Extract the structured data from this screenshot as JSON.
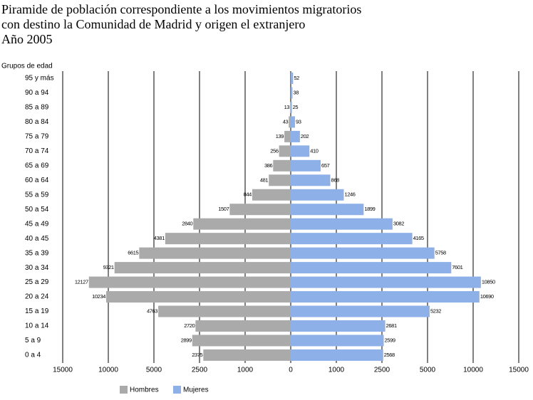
{
  "chart_data": {
    "type": "pyramid",
    "title": [
      "Piramide de población correspondiente a los movimientos migratorios",
      "con destino la Comunidad de Madrid y origen el extranjero",
      "Año 2005"
    ],
    "y_label": "Grupos de edad",
    "categories": [
      "95 y más",
      "90 a 94",
      "85 a 89",
      "80 a 84",
      "75 a 79",
      "70 a 74",
      "65 a 69",
      "60 a 64",
      "55 a 59",
      "50 a 54",
      "45 a 49",
      "40 a 45",
      "35 a 39",
      "30 a 34",
      "25 a 29",
      "20 a 24",
      "15 a 19",
      "10 a 14",
      "5 a 9",
      "0 a 4"
    ],
    "series": [
      {
        "name": "Hombres",
        "color": "#aaaaaa",
        "side": "left",
        "values": [
          null,
          null,
          13,
          43,
          139,
          256,
          386,
          481,
          844,
          1507,
          2840,
          4381,
          6615,
          9321,
          12127,
          10234,
          4763,
          2720,
          2899,
          2375
        ]
      },
      {
        "name": "Mujeres",
        "color": "#8db0e8",
        "side": "right",
        "values": [
          52,
          38,
          25,
          93,
          202,
          410,
          657,
          868,
          1246,
          1899,
          3082,
          4165,
          5758,
          7601,
          10850,
          10690,
          5232,
          2681,
          2599,
          2568
        ]
      }
    ],
    "xlim": [
      0,
      15000
    ],
    "xticks": [
      0,
      1000,
      2500,
      5000,
      10000,
      15000
    ],
    "mirrored": true,
    "grid": true,
    "legend": "bottom"
  }
}
